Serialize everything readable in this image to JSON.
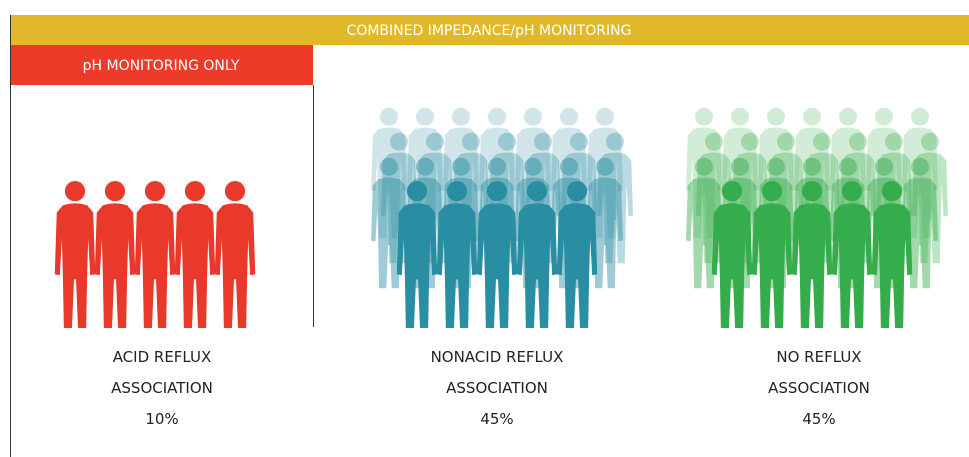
{
  "header": {
    "title": "COMBINED IMPEDANCE/pH MONITORING"
  },
  "subheader": {
    "title": "pH MONITORING ONLY"
  },
  "groups": [
    {
      "label": [
        "ACID REFLUX",
        "ASSOCIATION"
      ],
      "percent": "10%"
    },
    {
      "label": [
        "NONACID REFLUX",
        "ASSOCIATION"
      ],
      "percent": "45%"
    },
    {
      "label": [
        "NO REFLUX",
        "ASSOCIATION"
      ],
      "percent": "45%"
    }
  ]
}
